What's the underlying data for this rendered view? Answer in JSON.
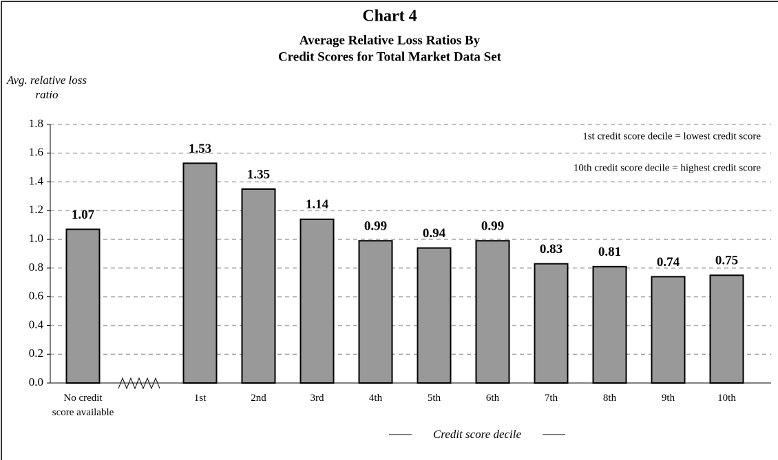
{
  "chart_data": {
    "type": "bar",
    "title": "Chart 4",
    "subtitle": [
      "Average Relative Loss Ratios By",
      "Credit Scores for Total Market Data Set"
    ],
    "ylabel": "Avg. relative loss ratio",
    "xlabel": "Credit score decile",
    "annotations": [
      "1st credit score decile = lowest credit score",
      "10th credit score decile = highest credit score"
    ],
    "categories": [
      "No credit score available",
      null,
      "1st",
      "2nd",
      "3rd",
      "4th",
      "5th",
      "6th",
      "7th",
      "8th",
      "9th",
      "10th"
    ],
    "values": [
      1.07,
      null,
      1.53,
      1.35,
      1.14,
      0.99,
      0.94,
      0.99,
      0.83,
      0.81,
      0.74,
      0.75
    ],
    "color": "#999999",
    "ylim": [
      0,
      1.8
    ],
    "yticks": [
      {
        "value": 0,
        "label": "0.0"
      },
      0.2,
      0.4,
      0.6,
      0.8,
      {
        "value": 1,
        "label": "1.0"
      },
      1.2,
      1.4,
      1.6,
      1.8
    ],
    "grid": true
  }
}
